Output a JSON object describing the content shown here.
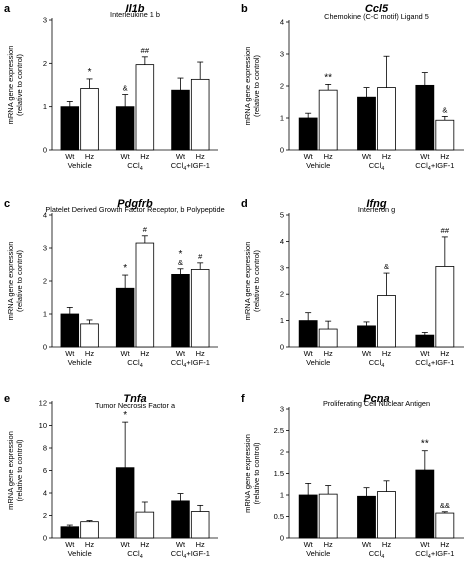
{
  "figure": {
    "bar_colors": {
      "wt": "#000000",
      "hz": "#ffffff"
    },
    "panels": [
      {
        "letter": "a",
        "gene": "Il1b",
        "description": "Interleukine 1 b",
        "ylabel": [
          "mRNA gene expression",
          "(relative to control)"
        ],
        "group_labels": [
          "Vehicle",
          "CCl4",
          "CCl4+IGF-1"
        ]
      },
      {
        "letter": "b",
        "gene": "Ccl5",
        "description": "Chemokine (C-C motif) Ligand 5",
        "ylabel": [
          "mRNA gene expression",
          "(relative to control)"
        ],
        "group_labels": [
          "Vehicle",
          "CCl4",
          "CCl4+IGF-1"
        ]
      },
      {
        "letter": "c",
        "gene": "Pdgfrb",
        "description": "Platelet Derived Growth Factor Receptor, b Polypeptide",
        "ylabel": [
          "mRNA gene expression",
          "(relative to control)"
        ],
        "group_labels": [
          "Vehicle",
          "CCl4",
          "CCl4+IGF-1"
        ]
      },
      {
        "letter": "d",
        "gene": "Ifng",
        "description": "Interferon g",
        "ylabel": [
          "mRNA gene expression",
          "(relative to control)"
        ],
        "group_labels": [
          "Vehicle",
          "CCl4",
          "CCl4+IGF-1"
        ]
      },
      {
        "letter": "e",
        "gene": "Tnfa",
        "description": "Tumor Necrosis Factor a",
        "ylabel": [
          "mRNA gene expression",
          "(relative to control)"
        ],
        "group_labels": [
          "Vehicle",
          "CCl4",
          "CCl4+IGF-1"
        ]
      },
      {
        "letter": "f",
        "gene": "Pcna",
        "description": "Proliferating Cell Nuclear Antigen",
        "ylabel": [
          "mRNA gene expression",
          "(relative to control)"
        ],
        "group_labels": [
          "Vehicle",
          "CCl4",
          "CCl4+IGF-1"
        ]
      }
    ]
  },
  "chart_data": [
    {
      "type": "bar",
      "title": "Il1b",
      "subtitle": "Interleukine 1 b",
      "ylabel": "mRNA gene expression (relative to control)",
      "ylim": [
        0,
        3
      ],
      "yticks": [
        "0",
        "1",
        "2",
        "3"
      ],
      "groups": [
        "Vehicle",
        "CCl4",
        "CCl4+IGF-1"
      ],
      "bar_labels": [
        "Wt",
        "Hz"
      ],
      "series": [
        {
          "name": "Wt",
          "values": [
            1.0,
            1.0,
            1.38
          ],
          "errors": [
            0.12,
            0.28,
            0.28
          ],
          "annotations": [
            "",
            "&",
            ""
          ]
        },
        {
          "name": "Hz",
          "values": [
            1.42,
            1.97,
            1.63
          ],
          "errors": [
            0.22,
            0.18,
            0.4
          ],
          "annotations": [
            "*",
            "##",
            ""
          ]
        }
      ]
    },
    {
      "type": "bar",
      "title": "Ccl5",
      "subtitle": "Chemokine (C-C motif) Ligand 5",
      "ylabel": "mRNA gene expression (relative to control)",
      "ylim": [
        0,
        4
      ],
      "yticks": [
        "0",
        "1",
        "2",
        "3",
        "4"
      ],
      "groups": [
        "Vehicle",
        "CCl4",
        "CCl4+IGF-1"
      ],
      "bar_labels": [
        "Wt",
        "Hz"
      ],
      "series": [
        {
          "name": "Wt",
          "values": [
            1.0,
            1.65,
            2.02
          ],
          "errors": [
            0.15,
            0.3,
            0.4
          ],
          "annotations": [
            "",
            "",
            ""
          ]
        },
        {
          "name": "Hz",
          "values": [
            1.87,
            1.95,
            0.93
          ],
          "errors": [
            0.18,
            0.98,
            0.12
          ],
          "annotations": [
            "**",
            "",
            "&"
          ]
        }
      ]
    },
    {
      "type": "bar",
      "title": "Pdgfrb",
      "subtitle": "Platelet Derived Growth Factor Receptor, b Polypeptide",
      "ylabel": "mRNA gene expression (relative to control)",
      "ylim": [
        0,
        4
      ],
      "yticks": [
        "0",
        "1",
        "2",
        "3",
        "4"
      ],
      "groups": [
        "Vehicle",
        "CCl4",
        "CCl4+IGF-1"
      ],
      "bar_labels": [
        "Wt",
        "Hz"
      ],
      "series": [
        {
          "name": "Wt",
          "values": [
            1.0,
            1.78,
            2.2
          ],
          "errors": [
            0.2,
            0.4,
            0.17
          ],
          "annotations": [
            "",
            "*",
            "*\n&"
          ]
        },
        {
          "name": "Hz",
          "values": [
            0.7,
            3.15,
            2.35
          ],
          "errors": [
            0.12,
            0.22,
            0.2
          ],
          "annotations": [
            "",
            "#",
            "#"
          ]
        }
      ]
    },
    {
      "type": "bar",
      "title": "Ifng",
      "subtitle": "Interferon g",
      "ylabel": "mRNA gene expression (relative to control)",
      "ylim": [
        0,
        5
      ],
      "yticks": [
        "0",
        "1",
        "2",
        "3",
        "4",
        "5"
      ],
      "groups": [
        "Vehicle",
        "CCl4",
        "CCl4+IGF-1"
      ],
      "bar_labels": [
        "Wt",
        "Hz"
      ],
      "series": [
        {
          "name": "Wt",
          "values": [
            1.0,
            0.8,
            0.45
          ],
          "errors": [
            0.3,
            0.15,
            0.1
          ],
          "annotations": [
            "",
            "",
            ""
          ]
        },
        {
          "name": "Hz",
          "values": [
            0.68,
            1.95,
            3.05
          ],
          "errors": [
            0.3,
            0.85,
            1.12
          ],
          "annotations": [
            "",
            "&",
            "##"
          ]
        }
      ]
    },
    {
      "type": "bar",
      "title": "Tnfa",
      "subtitle": "Tumor Necrosis Factor a",
      "ylabel": "mRNA gene expression (relative to control)",
      "ylim": [
        0,
        12
      ],
      "yticks": [
        "0",
        "2",
        "4",
        "6",
        "8",
        "10",
        "12"
      ],
      "groups": [
        "Vehicle",
        "CCl4",
        "CCl4+IGF-1"
      ],
      "bar_labels": [
        "Wt",
        "Hz"
      ],
      "series": [
        {
          "name": "Wt",
          "values": [
            1.0,
            6.25,
            3.3
          ],
          "errors": [
            0.15,
            4.05,
            0.65
          ],
          "annotations": [
            "",
            "*",
            ""
          ]
        },
        {
          "name": "Hz",
          "values": [
            1.45,
            2.3,
            2.35
          ],
          "errors": [
            0.1,
            0.9,
            0.55
          ],
          "annotations": [
            "",
            "",
            ""
          ]
        }
      ]
    },
    {
      "type": "bar",
      "title": "Pcna",
      "subtitle": "Proliferating Cell Nuclear Antigen",
      "ylabel": "mRNA gene expression (relative to control)",
      "ylim": [
        0,
        3
      ],
      "yticks": [
        "0",
        "0.5",
        "1",
        "1.5",
        "2",
        "2.5",
        "3"
      ],
      "groups": [
        "Vehicle",
        "CCl4",
        "CCl4+IGF-1"
      ],
      "bar_labels": [
        "Wt",
        "Hz"
      ],
      "series": [
        {
          "name": "Wt",
          "values": [
            1.0,
            0.97,
            1.58
          ],
          "errors": [
            0.27,
            0.2,
            0.45
          ],
          "annotations": [
            "",
            "",
            "**"
          ]
        },
        {
          "name": "Hz",
          "values": [
            1.02,
            1.08,
            0.58
          ],
          "errors": [
            0.2,
            0.25,
            0.03
          ],
          "annotations": [
            "",
            "",
            "&&"
          ]
        }
      ]
    }
  ]
}
